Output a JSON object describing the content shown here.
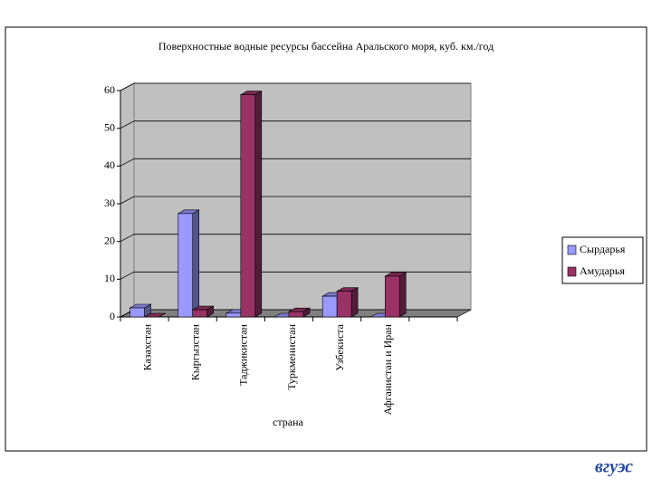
{
  "chart_data": {
    "type": "bar3d",
    "title": "Поверхностные водные ресурсы бассейна Аральского моря, куб. км./год",
    "x_label": "страна",
    "categories": [
      "Казахстан",
      "Кыргызстан",
      "Таджикистан",
      "Туркменистан",
      "Узбекиста",
      "Афганистан и Иран",
      null
    ],
    "series": [
      {
        "name": "Сырдарья",
        "color": "#9999ff",
        "values": [
          2.4,
          27.4,
          1.0,
          0,
          5.5,
          0,
          null
        ]
      },
      {
        "name": "Амударья",
        "color": "#993366",
        "values": [
          0,
          1.9,
          58.9,
          1.4,
          6.8,
          10.8,
          null
        ]
      }
    ],
    "ylim": [
      0,
      60
    ],
    "yticks": [
      0,
      10,
      20,
      30,
      40,
      50,
      60
    ],
    "grid": true,
    "legend": "right",
    "logo": "вгуэс"
  }
}
